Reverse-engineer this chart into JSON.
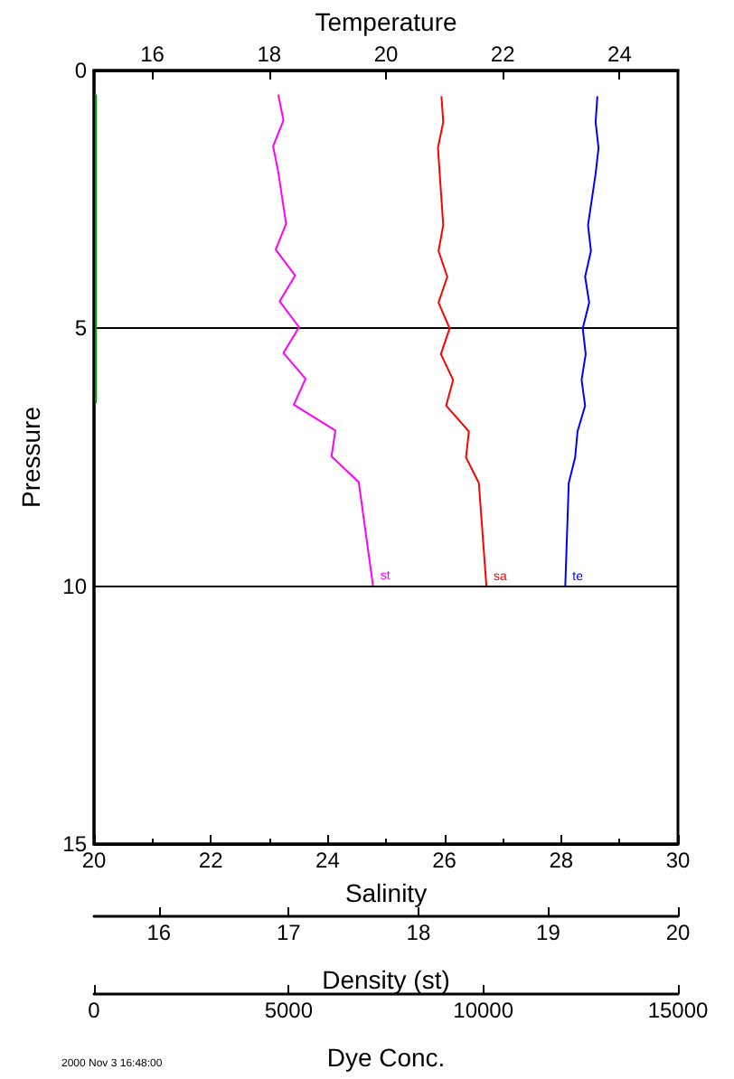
{
  "chart_data": [
    {
      "type": "line",
      "ylabel": "Pressure",
      "xlabel": "Salinity",
      "x2label": "Temperature",
      "ylim": [
        15,
        0
      ],
      "yticks": [
        0,
        5,
        10,
        15
      ],
      "xlim": [
        20,
        30
      ],
      "xticks": [
        20,
        {
          "value": 21,
          "label": null
        },
        22,
        {
          "value": 23,
          "label": null
        },
        24,
        {
          "value": 25,
          "label": null
        },
        26,
        {
          "value": 27,
          "label": null
        },
        28,
        {
          "value": 29,
          "label": null
        },
        30
      ],
      "x2lim": [
        15,
        25
      ],
      "x2ticks": [
        16,
        18,
        20,
        22,
        24
      ],
      "grid": "y",
      "marker": "none",
      "line_style": "solid",
      "series": [
        {
          "name": "sa",
          "color": "#ff0000",
          "x": [
            25.95,
            25.98,
            25.89,
            25.98,
            25.9,
            26.05,
            25.9,
            26.09,
            25.94,
            26.15,
            26.03,
            26.42,
            26.37,
            26.59,
            26.72
          ],
          "values": [
            0.5,
            1,
            1.5,
            3,
            3.5,
            4,
            4.5,
            5,
            5.5,
            6,
            6.5,
            7,
            7.5,
            8,
            10
          ]
        },
        {
          "name": "te",
          "color": "#0000ff",
          "axis": "x2",
          "x": [
            23.62,
            23.59,
            23.64,
            23.59,
            23.46,
            23.51,
            23.41,
            23.48,
            23.37,
            23.42,
            23.35,
            23.41,
            23.28,
            23.24,
            23.13,
            23.1,
            23.07
          ],
          "values": [
            0.5,
            1,
            1.5,
            2,
            3,
            3.5,
            4,
            4.5,
            5,
            5.5,
            6,
            6.5,
            7,
            7.5,
            8,
            9,
            10
          ]
        }
      ],
      "annotations": [
        "2000 Nov 3 16:48:00"
      ]
    },
    {
      "type": "line",
      "xlabel": "Density (st)",
      "ylim": [
        15,
        0
      ],
      "tick_labels": "x",
      "xlim": [
        15.5,
        20
      ],
      "xticks": [
        16,
        17,
        18,
        19,
        20
      ],
      "marker": "none",
      "line_style": "solid",
      "series": [
        {
          "name": "st",
          "color": "#ff00ff",
          "x": [
            16.92,
            16.96,
            16.88,
            16.92,
            16.98,
            16.9,
            17.05,
            16.93,
            17.08,
            16.96,
            17.13,
            17.04,
            17.36,
            17.33,
            17.54,
            17.65
          ],
          "values": [
            0.5,
            1,
            1.5,
            2,
            3,
            3.5,
            4,
            4.5,
            5,
            5.5,
            6,
            6.5,
            7,
            7.5,
            8,
            10
          ]
        }
      ]
    },
    {
      "type": "line",
      "xlabel": "Dye Conc.",
      "ylim": [
        15,
        0
      ],
      "tick_labels": "x",
      "xlim": [
        0,
        15000
      ],
      "xticks": [
        0,
        5000,
        10000,
        15000
      ],
      "marker": "none",
      "line_style": "solid",
      "series": [
        {
          "color": "#00a000",
          "x": [
            50,
            50,
            50,
            50,
            50,
            50,
            50,
            50,
            50,
            50,
            50,
            50,
            50
          ],
          "values": [
            0.5,
            1,
            1.5,
            2,
            2.5,
            3,
            3.5,
            4,
            4.5,
            5,
            5.5,
            6,
            6.5
          ]
        }
      ]
    }
  ]
}
